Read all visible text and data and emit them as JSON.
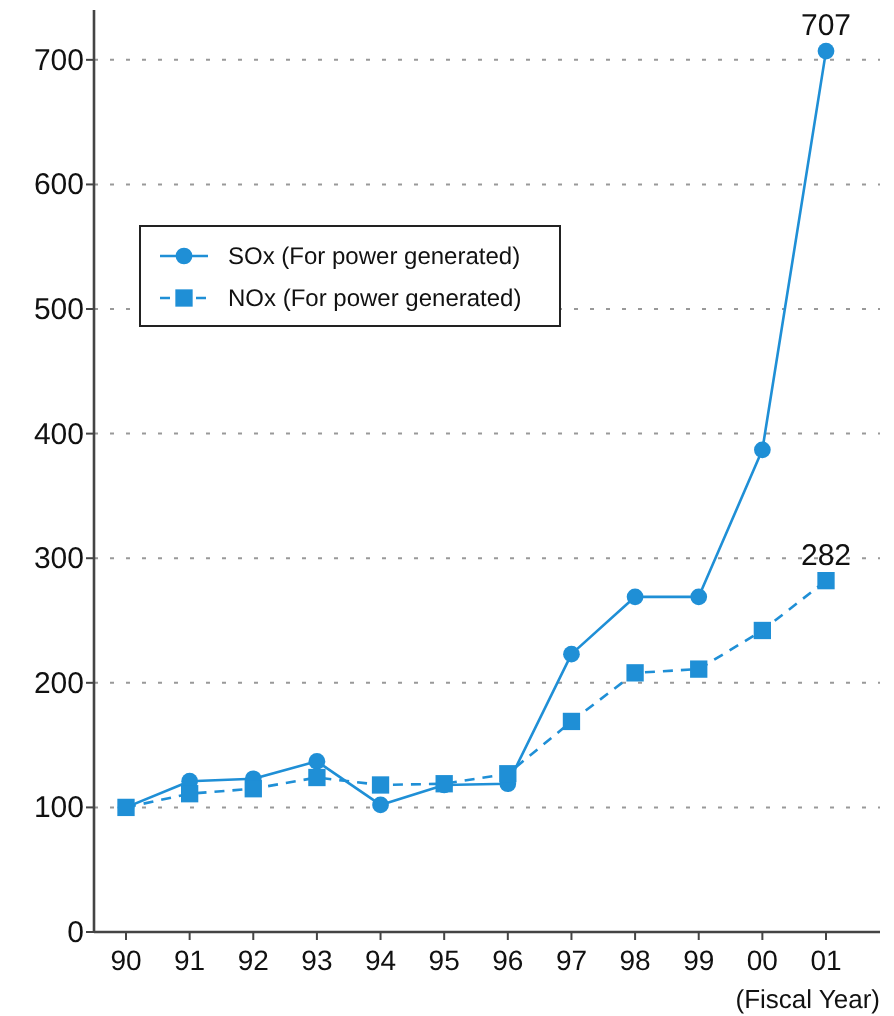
{
  "chart_data": {
    "type": "line",
    "xlabel": "(Fiscal Year)",
    "categories": [
      "90",
      "91",
      "92",
      "93",
      "94",
      "95",
      "96",
      "97",
      "98",
      "99",
      "00",
      "01"
    ],
    "series": [
      {
        "name": "SOx (For power generated)",
        "color": "#1f8fd6",
        "marker": "circle",
        "line_style": "solid",
        "values": [
          100,
          121,
          123,
          137,
          102,
          118,
          119,
          223,
          269,
          269,
          387,
          707
        ],
        "value_labels": [
          null,
          null,
          null,
          null,
          null,
          null,
          null,
          null,
          null,
          null,
          null,
          "707"
        ]
      },
      {
        "name": "NOx (For power generated)",
        "color": "#1f8fd6",
        "marker": "square",
        "line_style": "dashed",
        "values": [
          100,
          111,
          115,
          124,
          118,
          119,
          127,
          169,
          208,
          211,
          242,
          282
        ],
        "value_labels": [
          null,
          null,
          null,
          null,
          null,
          null,
          null,
          null,
          null,
          null,
          null,
          "282"
        ]
      }
    ],
    "ylim": [
      0,
      740
    ],
    "yticks": [
      0,
      100,
      200,
      300,
      400,
      500,
      600,
      700
    ],
    "grid": "y",
    "legend": "left"
  }
}
